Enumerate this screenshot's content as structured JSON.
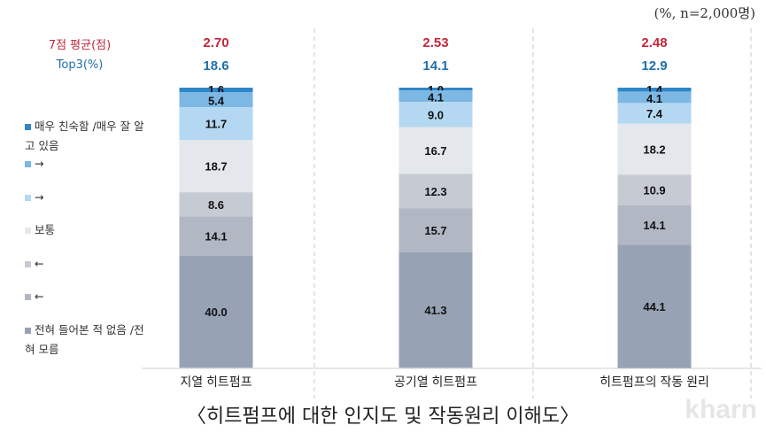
{
  "chart_data": {
    "type": "bar",
    "stacked": true,
    "unit_note": "(%, n=2,000명)",
    "title": "〈히트펌프에 대한 인지도 및 작동원리 이해도〉",
    "categories": [
      "지열 히트펌프",
      "공기열 히트펌프",
      "히트펌프의 작동 원리"
    ],
    "series": [
      {
        "name": "매우 친숙함 /매우 잘 알고 있음",
        "color": "#2e86c8",
        "values": [
          1.6,
          1.0,
          1.4
        ]
      },
      {
        "name": "→",
        "color": "#7db7e4",
        "values": [
          5.4,
          4.1,
          4.1
        ]
      },
      {
        "name": "→",
        "color": "#b5d8f2",
        "values": [
          11.7,
          9.0,
          7.4
        ]
      },
      {
        "name": "보통",
        "color": "#e4e7eb",
        "values": [
          18.7,
          16.7,
          18.2
        ]
      },
      {
        "name": "←",
        "color": "#c6cad3",
        "values": [
          8.6,
          12.3,
          10.9
        ]
      },
      {
        "name": "←",
        "color": "#b1b7c3",
        "values": [
          14.1,
          15.7,
          14.1
        ]
      },
      {
        "name": "전혀 들어본 적 없음 /전혀 모름",
        "color": "#97a3b4",
        "values": [
          40.0,
          41.3,
          44.1
        ]
      }
    ],
    "summary_rows": [
      {
        "label": "7점 평균(점)",
        "color": "#c0283a",
        "values": [
          "2.70",
          "2.53",
          "2.48"
        ]
      },
      {
        "label": "Top3(%)",
        "color": "#1f6fae",
        "values": [
          "18.6",
          "14.1",
          "12.9"
        ]
      }
    ],
    "ylim": [
      0,
      100
    ]
  },
  "watermark": "kharn"
}
